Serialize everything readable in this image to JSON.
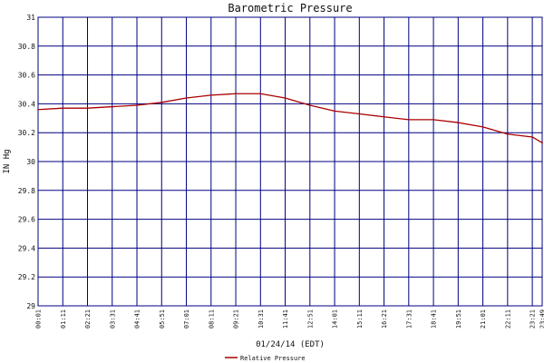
{
  "chart_data": {
    "type": "line",
    "title": "Barometric Pressure",
    "xlabel": "01/24/14 (EDT)",
    "ylabel": "IN Hg",
    "ylim": [
      29,
      31
    ],
    "yticks": [
      "29",
      "29.2",
      "29.4",
      "29.6",
      "29.8",
      "30",
      "30.2",
      "30.4",
      "30.6",
      "30.8",
      "31"
    ],
    "xticks": [
      "00:01",
      "01:11",
      "02:21",
      "03:31",
      "04:41",
      "05:51",
      "07:01",
      "08:11",
      "09:21",
      "10:31",
      "11:41",
      "12:51",
      "14:01",
      "15:11",
      "16:21",
      "17:31",
      "18:41",
      "19:51",
      "21:01",
      "22:11",
      "23:21",
      "23:49"
    ],
    "grid": true,
    "legend_position": "bottom",
    "colors": {
      "series": "#aa0000",
      "grid": "#000080",
      "frame": "#000080"
    },
    "series": [
      {
        "name": "Relative Pressure",
        "x": [
          "00:01",
          "01:11",
          "02:21",
          "03:31",
          "04:41",
          "05:51",
          "07:01",
          "08:11",
          "09:21",
          "10:31",
          "11:41",
          "12:51",
          "14:01",
          "15:11",
          "16:21",
          "17:31",
          "18:41",
          "19:51",
          "21:01",
          "22:11",
          "23:21",
          "23:49"
        ],
        "values": [
          30.36,
          30.37,
          30.37,
          30.38,
          30.39,
          30.41,
          30.44,
          30.46,
          30.47,
          30.47,
          30.44,
          30.39,
          30.35,
          30.33,
          30.31,
          30.29,
          30.29,
          30.27,
          30.24,
          30.19,
          30.17,
          30.13
        ]
      }
    ]
  }
}
